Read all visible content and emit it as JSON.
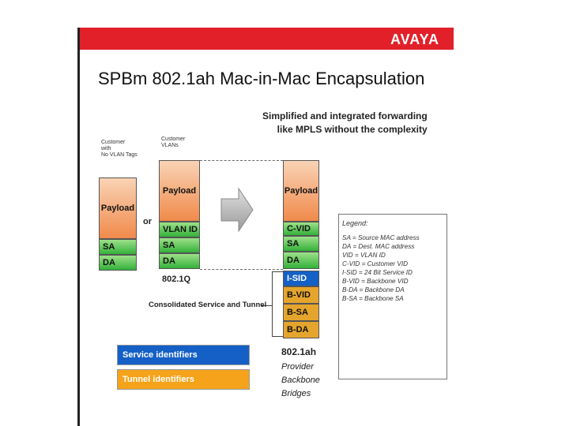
{
  "brand": {
    "logo": "AVAYA",
    "accent": "#e2202a"
  },
  "title": "SPBm 802.1ah Mac-in-Mac Encapsulation",
  "subtitle": {
    "line1": "Simplified  and integrated forwarding",
    "line2": "like MPLS without the complexity"
  },
  "frames": {
    "untagged": {
      "header": [
        "Customer",
        "with",
        "No VLAN Tags"
      ],
      "cells": [
        "Payload",
        "SA",
        "DA"
      ]
    },
    "or_label": "or",
    "tagged": {
      "header": [
        "Customer",
        "VLANs"
      ],
      "cells": [
        "Payload",
        "VLAN ID",
        "SA",
        "DA"
      ],
      "caption": "802.1Q"
    },
    "encapsulated": {
      "cells": [
        "Payload",
        "C-VID",
        "SA",
        "DA",
        "I-SID",
        "B-VID",
        "B-SA",
        "B-DA"
      ],
      "caption": "802.1ah",
      "sub": [
        "Provider",
        "Backbone",
        "Bridges"
      ]
    }
  },
  "consolidated_label": "Consolidated Service and Tunnel",
  "legend": {
    "title": "Legend:",
    "items": [
      "SA = Source MAC address",
      "DA = Dest. MAC address",
      "VID = VLAN ID",
      "C-VID = Customer VID",
      "I-SID = 24 Bit Service ID",
      "B-VID = Backbone VID",
      "B-DA = Backbone DA",
      "B-SA = Backbone SA"
    ]
  },
  "identifiers": {
    "service": "Service identifiers",
    "tunnel": "Tunnel identifiers"
  },
  "colors": {
    "service": "#1560c6",
    "tunnel": "#f5a31a",
    "payload": "#f08a4b",
    "green": "#33b13a"
  }
}
